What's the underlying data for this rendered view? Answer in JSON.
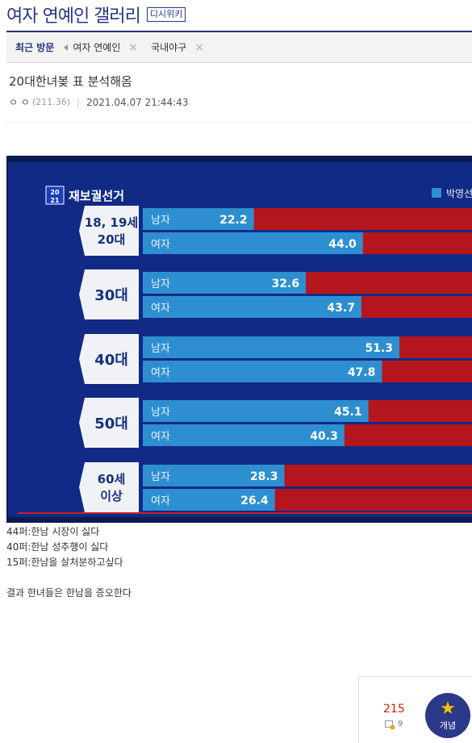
{
  "gallery": {
    "title": "여자 연예인 갤러리",
    "wiki": "디시위키"
  },
  "recent": {
    "label": "최근 방문",
    "items": [
      {
        "label": "여자 연예인"
      },
      {
        "label": "국내야구"
      }
    ]
  },
  "post": {
    "title": "20대한녀봊 표 분석해옴",
    "author": "ㅇ ㅇ",
    "ip": "(211.36)",
    "datetime": "2021.04.07 21:44:43"
  },
  "tv": {
    "logo_top": "20",
    "logo_bottom": "21",
    "heading": "재보궐선거",
    "legend_name": "박영선",
    "colors": {
      "bg": "#112a86",
      "blue_bar": "#2d8fd0",
      "red_bar": "#b5161d",
      "label_bg": "#f0f2f6",
      "label_text": "#17307d"
    }
  },
  "chart_data": {
    "type": "bar",
    "title": "재보궐선거",
    "legend": [
      "박영선"
    ],
    "groups": [
      {
        "label_lines": [
          "18, 19세",
          "20대"
        ],
        "male_label": "남자",
        "female_label": "여자",
        "male": 22.2,
        "female": 44.0,
        "male_text": "22.2",
        "female_text": "44.0"
      },
      {
        "label_lines": [
          "30대"
        ],
        "male_label": "남자",
        "female_label": "여자",
        "male": 32.6,
        "female": 43.7,
        "male_text": "32.6",
        "female_text": "43.7"
      },
      {
        "label_lines": [
          "40대"
        ],
        "male_label": "남자",
        "female_label": "여자",
        "male": 51.3,
        "female": 47.8,
        "male_text": "51.3",
        "female_text": "47.8"
      },
      {
        "label_lines": [
          "50대"
        ],
        "male_label": "남자",
        "female_label": "여자",
        "male": 45.1,
        "female": 40.3,
        "male_text": "45.1",
        "female_text": "40.3"
      },
      {
        "label_lines": [
          "60세",
          "이상"
        ],
        "male_label": "남자",
        "female_label": "여자",
        "male": 28.3,
        "female": 26.4,
        "male_text": "28.3",
        "female_text": "26.4"
      }
    ]
  },
  "body": {
    "lines": [
      "44퍼:한남 시장이 싫다",
      "40퍼:한남 성추행이 싫다",
      "15퍼:한남을 살처분하고싶다",
      "",
      "결과 한녀들은 한남을 증오한다"
    ]
  },
  "recommend": {
    "count": "215",
    "fix_count": "9",
    "concept_label": "개념"
  }
}
